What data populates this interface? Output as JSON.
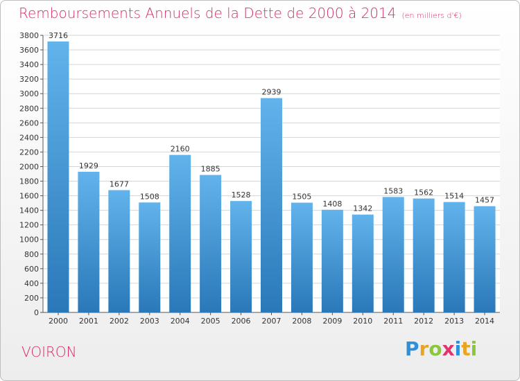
{
  "header": {
    "title": "Remboursements Annuels de la Dette de 2000 à 2014",
    "unit": "(en milliers d'€)"
  },
  "footer": {
    "place": "VOIRON",
    "logo": "Proxiti"
  },
  "colors": {
    "title": "#d62a6a",
    "bar_light": "#62b3ec",
    "bar_dark": "#2a78b8",
    "grid": "#d4d4d4"
  },
  "chart_data": {
    "type": "bar",
    "title": "Remboursements Annuels de la Dette de 2000 à 2014",
    "xlabel": "",
    "ylabel": "",
    "ylim": [
      0,
      3800
    ],
    "ytick_step": 200,
    "grid": true,
    "categories": [
      "2000",
      "2001",
      "2002",
      "2003",
      "2004",
      "2005",
      "2006",
      "2007",
      "2008",
      "2009",
      "2010",
      "2011",
      "2012",
      "2013",
      "2014"
    ],
    "values": [
      3716,
      1929,
      1677,
      1508,
      2160,
      1885,
      1528,
      2939,
      1505,
      1408,
      1342,
      1583,
      1562,
      1514,
      1457
    ]
  }
}
